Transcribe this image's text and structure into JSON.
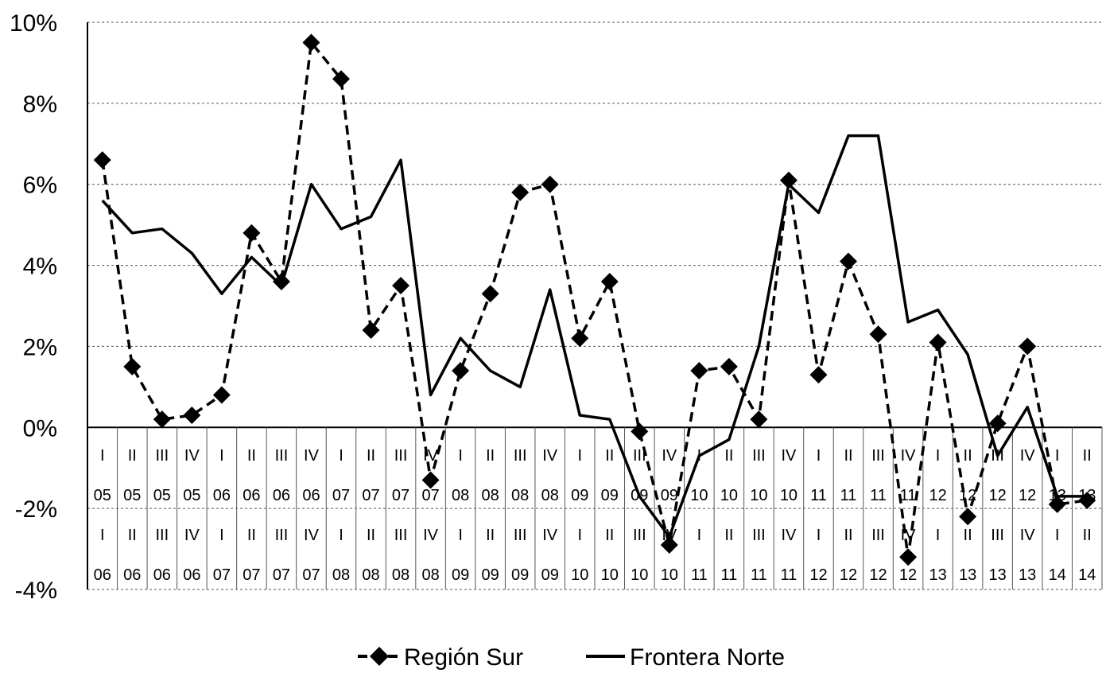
{
  "chart_data": {
    "type": "line",
    "y_ticks": [
      "10%",
      "8%",
      "6%",
      "4%",
      "2%",
      "0%",
      "-2%",
      "-4%"
    ],
    "ylim": [
      -0.04,
      0.1
    ],
    "grid": true,
    "grid_style": "dashed horizontal",
    "legend_position": "bottom-center",
    "categories_row1": [
      {
        "q": "I",
        "y": "05"
      },
      {
        "q": "II",
        "y": "05"
      },
      {
        "q": "III",
        "y": "05"
      },
      {
        "q": "IV",
        "y": "05"
      },
      {
        "q": "I",
        "y": "06"
      },
      {
        "q": "II",
        "y": "06"
      },
      {
        "q": "III",
        "y": "06"
      },
      {
        "q": "IV",
        "y": "06"
      },
      {
        "q": "I",
        "y": "07"
      },
      {
        "q": "II",
        "y": "07"
      },
      {
        "q": "III",
        "y": "07"
      },
      {
        "q": "IV",
        "y": "07"
      },
      {
        "q": "I",
        "y": "08"
      },
      {
        "q": "II",
        "y": "08"
      },
      {
        "q": "III",
        "y": "08"
      },
      {
        "q": "IV",
        "y": "08"
      },
      {
        "q": "I",
        "y": "09"
      },
      {
        "q": "II",
        "y": "09"
      },
      {
        "q": "III",
        "y": "09"
      },
      {
        "q": "IV",
        "y": "09"
      },
      {
        "q": "I",
        "y": "10"
      },
      {
        "q": "II",
        "y": "10"
      },
      {
        "q": "III",
        "y": "10"
      },
      {
        "q": "IV",
        "y": "10"
      },
      {
        "q": "I",
        "y": "11"
      },
      {
        "q": "II",
        "y": "11"
      },
      {
        "q": "III",
        "y": "11"
      },
      {
        "q": "IV",
        "y": "11"
      },
      {
        "q": "I",
        "y": "12"
      },
      {
        "q": "II",
        "y": "12"
      },
      {
        "q": "III",
        "y": "12"
      },
      {
        "q": "IV",
        "y": "12"
      },
      {
        "q": "I",
        "y": "13"
      },
      {
        "q": "II",
        "y": "13"
      }
    ],
    "categories_row2": [
      {
        "q": "I",
        "y": "06"
      },
      {
        "q": "II",
        "y": "06"
      },
      {
        "q": "III",
        "y": "06"
      },
      {
        "q": "IV",
        "y": "06"
      },
      {
        "q": "I",
        "y": "07"
      },
      {
        "q": "II",
        "y": "07"
      },
      {
        "q": "III",
        "y": "07"
      },
      {
        "q": "IV",
        "y": "07"
      },
      {
        "q": "I",
        "y": "08"
      },
      {
        "q": "II",
        "y": "08"
      },
      {
        "q": "III",
        "y": "08"
      },
      {
        "q": "IV",
        "y": "08"
      },
      {
        "q": "I",
        "y": "09"
      },
      {
        "q": "II",
        "y": "09"
      },
      {
        "q": "III",
        "y": "09"
      },
      {
        "q": "IV",
        "y": "09"
      },
      {
        "q": "I",
        "y": "10"
      },
      {
        "q": "II",
        "y": "10"
      },
      {
        "q": "III",
        "y": "10"
      },
      {
        "q": "IV",
        "y": "10"
      },
      {
        "q": "I",
        "y": "11"
      },
      {
        "q": "II",
        "y": "11"
      },
      {
        "q": "III",
        "y": "11"
      },
      {
        "q": "IV",
        "y": "11"
      },
      {
        "q": "I",
        "y": "12"
      },
      {
        "q": "II",
        "y": "12"
      },
      {
        "q": "III",
        "y": "12"
      },
      {
        "q": "IV",
        "y": "12"
      },
      {
        "q": "I",
        "y": "13"
      },
      {
        "q": "II",
        "y": "13"
      },
      {
        "q": "III",
        "y": "13"
      },
      {
        "q": "IV",
        "y": "13"
      },
      {
        "q": "I",
        "y": "14"
      },
      {
        "q": "II",
        "y": "14"
      }
    ],
    "series": [
      {
        "name": "Región Sur",
        "style": "dashed-diamond",
        "color": "#000000",
        "values": [
          0.066,
          0.015,
          0.002,
          0.003,
          0.008,
          0.048,
          0.036,
          0.095,
          0.086,
          0.024,
          0.035,
          -0.013,
          0.014,
          0.033,
          0.058,
          0.06,
          0.022,
          0.036,
          -0.001,
          -0.029,
          0.014,
          0.015,
          0.002,
          0.061,
          0.013,
          0.041,
          0.023,
          -0.032,
          0.021,
          -0.022,
          0.001,
          0.02,
          -0.019,
          -0.018
        ]
      },
      {
        "name": "Frontera Norte",
        "style": "solid",
        "color": "#000000",
        "values": [
          0.056,
          0.048,
          0.049,
          0.043,
          0.033,
          0.042,
          0.035,
          0.06,
          0.049,
          0.052,
          0.066,
          0.008,
          0.022,
          0.014,
          0.01,
          0.034,
          0.003,
          0.002,
          -0.017,
          -0.027,
          -0.007,
          -0.003,
          0.02,
          0.06,
          0.053,
          0.072,
          0.072,
          0.026,
          0.029,
          0.018,
          -0.007,
          0.005,
          -0.017,
          -0.017
        ]
      }
    ]
  }
}
